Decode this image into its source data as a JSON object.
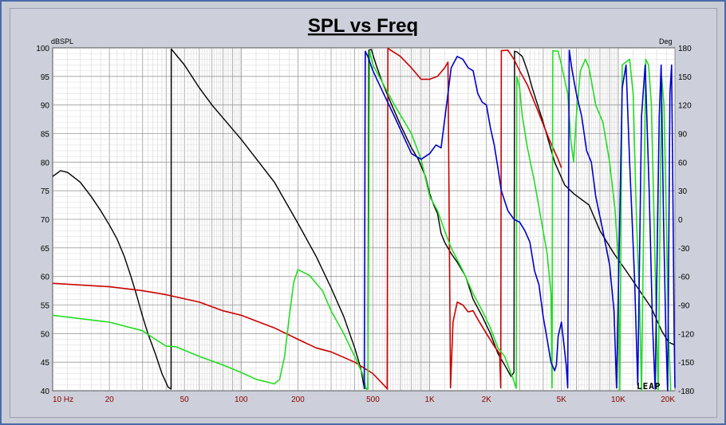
{
  "chart_data": {
    "type": "line",
    "title": "SPL vs Freq",
    "ylabel": "dBSPL",
    "ylabel_right": "Deg",
    "x_scale": "log",
    "xlim": [
      10,
      20000
    ],
    "ylim": [
      40,
      100
    ],
    "ylim_right": [
      -180,
      180
    ],
    "grid": true,
    "x_ticks": [
      10,
      20,
      50,
      100,
      200,
      500,
      1000,
      2000,
      5000,
      10000,
      20000
    ],
    "x_tick_labels": [
      "10  Hz",
      "20",
      "50",
      "100",
      "200",
      "500",
      "1K",
      "2K",
      "5K",
      "10K",
      "20K"
    ],
    "y_ticks": [
      40,
      45,
      50,
      55,
      60,
      65,
      70,
      75,
      80,
      85,
      90,
      95,
      100
    ],
    "y_right_ticks": [
      -180,
      -150,
      -120,
      -90,
      -60,
      -30,
      0,
      30,
      60,
      90,
      120,
      150,
      180
    ],
    "watermark": "LEAP",
    "series": [
      {
        "color": "#000000",
        "width": 1.4,
        "points": [
          [
            10,
            77.5
          ],
          [
            11,
            78.5
          ],
          [
            12,
            78.2
          ],
          [
            14,
            76.5
          ],
          [
            16,
            74
          ],
          [
            18,
            71.5
          ],
          [
            20,
            69
          ],
          [
            22,
            66.5
          ],
          [
            24,
            63.5
          ],
          [
            26,
            60
          ],
          [
            28,
            56.5
          ],
          [
            30,
            53
          ],
          [
            32,
            50
          ],
          [
            35,
            46.5
          ],
          [
            38,
            43
          ],
          [
            41,
            40.6
          ],
          [
            42.5,
            40.3
          ],
          [
            42.6,
            99.8
          ],
          [
            50,
            97
          ],
          [
            60,
            93
          ],
          [
            70,
            90
          ],
          [
            100,
            84
          ],
          [
            150,
            76.5
          ],
          [
            200,
            69.3
          ],
          [
            250,
            63.5
          ],
          [
            300,
            58
          ],
          [
            350,
            53
          ],
          [
            400,
            47.5
          ],
          [
            430,
            44
          ],
          [
            450,
            40.5
          ],
          [
            470,
            40.3
          ],
          [
            475,
            99.6
          ],
          [
            490,
            99.7
          ],
          [
            520,
            97
          ],
          [
            560,
            94
          ],
          [
            620,
            90.5
          ],
          [
            700,
            86.5
          ],
          [
            800,
            82.5
          ],
          [
            870,
            80.5
          ],
          [
            950,
            77.5
          ],
          [
            1000,
            74.5
          ],
          [
            1050,
            72.5
          ],
          [
            1100,
            71
          ],
          [
            1150,
            67.5
          ],
          [
            1200,
            66
          ],
          [
            1300,
            64
          ],
          [
            1400,
            62.5
          ],
          [
            1550,
            60
          ],
          [
            1700,
            56
          ],
          [
            1900,
            53
          ],
          [
            2100,
            50
          ],
          [
            2300,
            46.5
          ],
          [
            2500,
            44.5
          ],
          [
            2650,
            43
          ],
          [
            2700,
            42.5
          ],
          [
            2800,
            43.2
          ],
          [
            2820,
            99.4
          ],
          [
            2900,
            99.3
          ],
          [
            3100,
            98.5
          ],
          [
            3300,
            96
          ],
          [
            3500,
            93
          ],
          [
            4000,
            87
          ],
          [
            4600,
            80
          ],
          [
            5200,
            76
          ],
          [
            5800,
            74.5
          ],
          [
            7000,
            72.5
          ],
          [
            8000,
            68
          ],
          [
            9500,
            64
          ],
          [
            11000,
            61
          ],
          [
            13000,
            57.5
          ],
          [
            15000,
            54.5
          ],
          [
            17000,
            50.5
          ],
          [
            18500,
            48.5
          ],
          [
            20000,
            48
          ]
        ]
      },
      {
        "color": "#cc0000",
        "width": 1.6,
        "points": [
          [
            10,
            58.8
          ],
          [
            20,
            58.2
          ],
          [
            30,
            57.5
          ],
          [
            40,
            56.8
          ],
          [
            60,
            55.5
          ],
          [
            80,
            54
          ],
          [
            100,
            53.2
          ],
          [
            150,
            51
          ],
          [
            200,
            49
          ],
          [
            250,
            47.5
          ],
          [
            300,
            46.8
          ],
          [
            400,
            45
          ],
          [
            500,
            43
          ],
          [
            590,
            40.5
          ],
          [
            595,
            40.3
          ],
          [
            600,
            99.9
          ],
          [
            700,
            98.5
          ],
          [
            800,
            96.5
          ],
          [
            900,
            94.5
          ],
          [
            1000,
            94.5
          ],
          [
            1100,
            95
          ],
          [
            1200,
            96.5
          ],
          [
            1250,
            97.5
          ],
          [
            1290,
            40.5
          ],
          [
            1330,
            52
          ],
          [
            1400,
            55.5
          ],
          [
            1500,
            55
          ],
          [
            1600,
            53.8
          ],
          [
            1700,
            54
          ],
          [
            1800,
            52.5
          ],
          [
            2000,
            50
          ],
          [
            2200,
            47.8
          ],
          [
            2350,
            46.5
          ],
          [
            2380,
            40.5
          ],
          [
            2400,
            99.5
          ],
          [
            2600,
            99.6
          ],
          [
            2800,
            98
          ],
          [
            3000,
            96
          ],
          [
            3300,
            93.5
          ],
          [
            3800,
            88.5
          ],
          [
            4300,
            84
          ],
          [
            4800,
            80.5
          ],
          [
            5000,
            79
          ]
        ]
      },
      {
        "color": "#22dd22",
        "width": 1.6,
        "points": [
          [
            10,
            53.2
          ],
          [
            20,
            52
          ],
          [
            30,
            50.5
          ],
          [
            35,
            49
          ],
          [
            40,
            47.8
          ],
          [
            45,
            47.7
          ],
          [
            60,
            46
          ],
          [
            80,
            44.5
          ],
          [
            100,
            43.2
          ],
          [
            120,
            42
          ],
          [
            150,
            41.2
          ],
          [
            160,
            42
          ],
          [
            170,
            46
          ],
          [
            180,
            53
          ],
          [
            190,
            59
          ],
          [
            200,
            61.2
          ],
          [
            230,
            60.2
          ],
          [
            270,
            57.5
          ],
          [
            300,
            54
          ],
          [
            350,
            50
          ],
          [
            400,
            46
          ],
          [
            440,
            43
          ],
          [
            460,
            40.3
          ],
          [
            470,
            40.3
          ],
          [
            480,
            99.5
          ],
          [
            500,
            97
          ],
          [
            560,
            94
          ],
          [
            650,
            90
          ],
          [
            800,
            85
          ],
          [
            900,
            80.5
          ],
          [
            1000,
            74
          ],
          [
            1100,
            71.5
          ],
          [
            1200,
            68
          ],
          [
            1300,
            65
          ],
          [
            1500,
            61
          ],
          [
            1700,
            57
          ],
          [
            1900,
            54
          ],
          [
            2100,
            51
          ],
          [
            2300,
            47.5
          ],
          [
            2500,
            46
          ],
          [
            2600,
            44.5
          ],
          [
            2700,
            43
          ],
          [
            2780,
            42
          ],
          [
            2880,
            40.4
          ],
          [
            2900,
            95
          ],
          [
            3000,
            93
          ],
          [
            3100,
            88
          ],
          [
            3300,
            82.5
          ],
          [
            3600,
            76.5
          ],
          [
            3900,
            70
          ],
          [
            4200,
            64
          ],
          [
            4400,
            57
          ],
          [
            4460,
            40.5
          ],
          [
            4500,
            99.5
          ],
          [
            4800,
            99.4
          ],
          [
            5000,
            97
          ],
          [
            5400,
            92
          ],
          [
            5600,
            84
          ],
          [
            5800,
            80
          ],
          [
            6000,
            88
          ],
          [
            6300,
            96
          ],
          [
            6700,
            98
          ],
          [
            7000,
            96.5
          ],
          [
            7600,
            90
          ],
          [
            8300,
            87
          ],
          [
            9000,
            80
          ],
          [
            9600,
            72
          ],
          [
            10000,
            63
          ],
          [
            10200,
            40
          ],
          [
            10500,
            97
          ],
          [
            11500,
            98
          ],
          [
            12000,
            92
          ],
          [
            12500,
            70
          ],
          [
            13000,
            55
          ],
          [
            13300,
            40
          ],
          [
            14000,
            98
          ],
          [
            14500,
            97
          ],
          [
            15000,
            90
          ],
          [
            15500,
            70
          ],
          [
            16000,
            50
          ],
          [
            16300,
            40
          ],
          [
            17000,
            95
          ],
          [
            17500,
            90
          ],
          [
            18000,
            70
          ],
          [
            18500,
            50
          ],
          [
            19000,
            40
          ]
        ]
      },
      {
        "color": "#0000cc",
        "width": 1.6,
        "points": [
          [
            450,
            40.3
          ],
          [
            455,
            99.4
          ],
          [
            470,
            98.5
          ],
          [
            500,
            96
          ],
          [
            560,
            92.5
          ],
          [
            650,
            88
          ],
          [
            800,
            81.5
          ],
          [
            900,
            80.5
          ],
          [
            1000,
            81.5
          ],
          [
            1080,
            83
          ],
          [
            1150,
            82.5
          ],
          [
            1250,
            92
          ],
          [
            1300,
            96.5
          ],
          [
            1400,
            98.5
          ],
          [
            1500,
            98
          ],
          [
            1600,
            96.5
          ],
          [
            1700,
            96
          ],
          [
            1800,
            92
          ],
          [
            1900,
            90.5
          ],
          [
            2000,
            90
          ],
          [
            2100,
            86
          ],
          [
            2200,
            83
          ],
          [
            2300,
            79
          ],
          [
            2400,
            75
          ],
          [
            2600,
            71.5
          ],
          [
            2800,
            70
          ],
          [
            3000,
            69.5
          ],
          [
            3200,
            68
          ],
          [
            3400,
            66
          ],
          [
            3600,
            61
          ],
          [
            3800,
            58.5
          ],
          [
            4000,
            53
          ],
          [
            4200,
            49
          ],
          [
            4400,
            45
          ],
          [
            4600,
            43.5
          ],
          [
            4700,
            44.5
          ],
          [
            4800,
            49.5
          ],
          [
            5000,
            52
          ],
          [
            5300,
            44.5
          ],
          [
            5400,
            40.5
          ],
          [
            5500,
            99.6
          ],
          [
            5700,
            96
          ],
          [
            6000,
            92
          ],
          [
            6400,
            88
          ],
          [
            6800,
            82
          ],
          [
            7200,
            80
          ],
          [
            7600,
            74
          ],
          [
            8300,
            68
          ],
          [
            9000,
            62
          ],
          [
            9500,
            54
          ],
          [
            9800,
            40.5
          ],
          [
            10500,
            93
          ],
          [
            11000,
            97
          ],
          [
            11500,
            80
          ],
          [
            12200,
            60
          ],
          [
            12700,
            41
          ],
          [
            13300,
            88
          ],
          [
            13900,
            97
          ],
          [
            14600,
            75
          ],
          [
            15200,
            52
          ],
          [
            15700,
            40.3
          ],
          [
            16500,
            88
          ],
          [
            16900,
            97
          ],
          [
            17400,
            70
          ],
          [
            17900,
            50
          ],
          [
            18300,
            40
          ],
          [
            18800,
            92
          ],
          [
            19200,
            97
          ],
          [
            19500,
            75
          ],
          [
            19800,
            50
          ],
          [
            20000,
            40.5
          ]
        ]
      }
    ]
  }
}
